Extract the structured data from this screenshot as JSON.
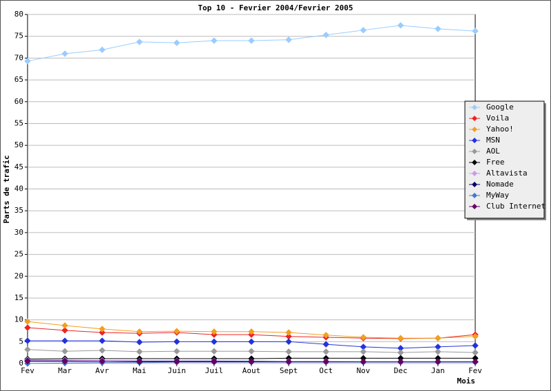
{
  "chart_data": {
    "type": "line",
    "title": "Top 10 - Fevrier 2004/Fevrier 2005",
    "y_label": "Parts de trafic",
    "x_label": "Mois",
    "categories": [
      "Fev",
      "Mar",
      "Avr",
      "Mai",
      "Juin",
      "Juil",
      "Aout",
      "Sept",
      "Oct",
      "Nov",
      "Dec",
      "Jan",
      "Fev"
    ],
    "ylim": [
      0,
      80
    ],
    "yticks": [
      0,
      5,
      10,
      15,
      20,
      25,
      30,
      35,
      40,
      45,
      50,
      55,
      60,
      65,
      70,
      75,
      80
    ],
    "grid": true,
    "legend": "right",
    "series": [
      {
        "name": "Google",
        "color": "#99ccff",
        "values": [
          69.3,
          71.0,
          71.9,
          73.7,
          73.5,
          74.0,
          74.0,
          74.2,
          75.3,
          76.4,
          77.5,
          76.7,
          76.2
        ]
      },
      {
        "name": "Voila",
        "color": "#ee2222",
        "values": [
          8.2,
          7.6,
          7.1,
          6.9,
          7.1,
          6.6,
          6.6,
          6.2,
          6.0,
          5.8,
          5.7,
          5.8,
          6.6
        ]
      },
      {
        "name": "Yahoo!",
        "color": "#f0a020",
        "values": [
          9.6,
          8.7,
          7.9,
          7.3,
          7.4,
          7.3,
          7.3,
          7.1,
          6.5,
          6.0,
          5.8,
          5.8,
          6.2
        ]
      },
      {
        "name": "MSN",
        "color": "#2233dd",
        "values": [
          5.2,
          5.2,
          5.2,
          4.9,
          5.0,
          5.0,
          5.0,
          5.0,
          4.4,
          3.8,
          3.5,
          3.8,
          4.1
        ]
      },
      {
        "name": "AOL",
        "color": "#999999",
        "values": [
          3.2,
          2.8,
          3.0,
          2.7,
          2.8,
          2.8,
          2.8,
          2.7,
          2.7,
          2.7,
          2.5,
          2.7,
          2.5
        ]
      },
      {
        "name": "Free",
        "color": "#000000",
        "values": [
          1.0,
          1.1,
          1.1,
          1.1,
          1.1,
          1.1,
          1.1,
          1.2,
          1.2,
          1.2,
          1.2,
          1.2,
          1.2
        ]
      },
      {
        "name": "Altavista",
        "color": "#cc99ee",
        "values": [
          0.8,
          0.8,
          0.7,
          0.6,
          0.6,
          0.6,
          0.5,
          0.5,
          0.5,
          0.4,
          0.4,
          0.4,
          0.3
        ]
      },
      {
        "name": "Nomade",
        "color": "#000066",
        "values": [
          0.6,
          0.6,
          0.5,
          0.5,
          0.5,
          0.5,
          0.5,
          0.4,
          0.4,
          0.4,
          0.4,
          0.4,
          0.4
        ]
      },
      {
        "name": "MyWay",
        "color": "#4477cc",
        "values": [
          0.0,
          0.1,
          0.2,
          0.2,
          0.3,
          0.3,
          0.3,
          0.3,
          0.3,
          0.3,
          0.3,
          0.3,
          0.3
        ]
      },
      {
        "name": "Club Internet",
        "color": "#660066",
        "values": [
          0.5,
          0.5,
          0.5,
          0.4,
          0.4,
          0.4,
          0.4,
          0.4,
          0.4,
          0.4,
          0.4,
          0.4,
          0.4
        ]
      }
    ]
  }
}
